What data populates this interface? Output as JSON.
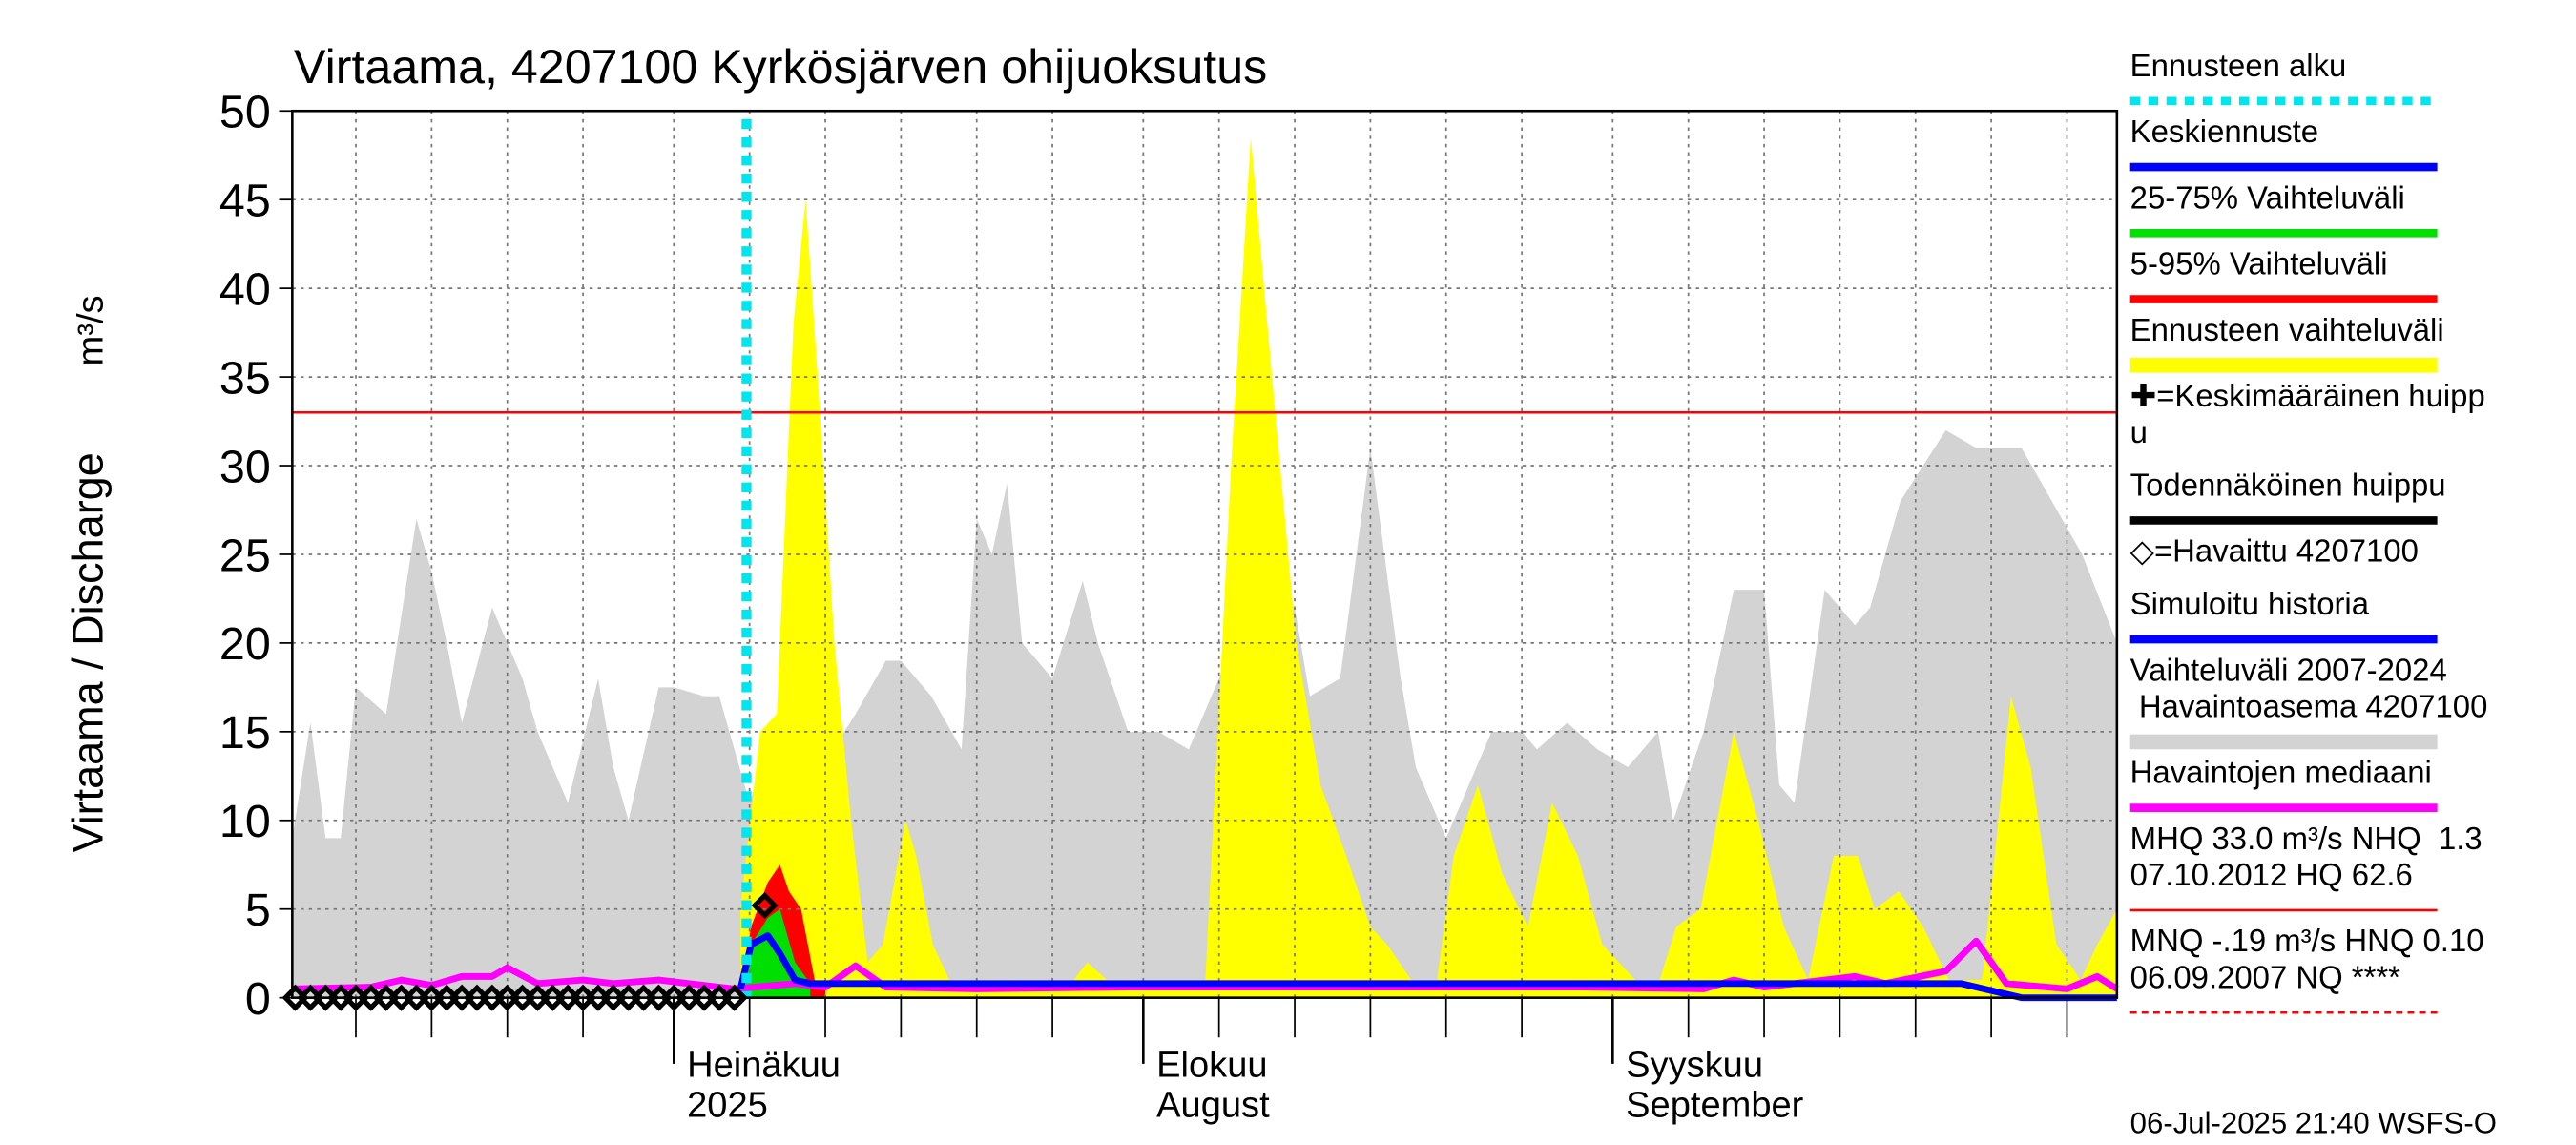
{
  "chart_data": {
    "type": "hydrograph",
    "title": "Virtaama, 4207100 Kyrkösjärven ohijuoksutus",
    "y_label": "Virtaama / Discharge",
    "y_unit": "m³/s",
    "footer": "06-Jul-2025 21:40 WSFS-O",
    "xlim": [
      -25.2,
      95.3
    ],
    "ylim": [
      0,
      50
    ],
    "yticks": [
      0,
      5,
      10,
      15,
      20,
      25,
      30,
      35,
      40,
      45,
      50
    ],
    "xticks": [
      {
        "value": 0,
        "label": "Heinäkuu",
        "label2": "2025"
      },
      {
        "value": 31,
        "label": "Elokuu",
        "label2": "August"
      },
      {
        "value": 62,
        "label": "Syyskuu",
        "label2": "September"
      }
    ],
    "xgrid": [
      -21,
      -16,
      -11,
      -6,
      0,
      5,
      10,
      15,
      20,
      25,
      31,
      36,
      41,
      46,
      51,
      56,
      62,
      67,
      72,
      77,
      82,
      87,
      92
    ],
    "grid": true,
    "forecast_start": 4.8,
    "mhq": 33,
    "areas": [
      {
        "name": "Vaihteluväli 2007-2024",
        "color": "#d3d3d3",
        "x": [
          -25.2,
          -24,
          -23,
          -22,
          -21,
          -19,
          -17,
          -16,
          -15,
          -14,
          -12,
          -11,
          -10,
          -9,
          -7,
          -5,
          -4,
          -3,
          -1,
          0,
          2,
          3,
          5,
          7,
          8,
          9,
          12,
          14,
          15,
          17,
          19,
          20,
          21,
          22,
          23,
          25,
          27,
          28,
          30,
          31,
          32,
          34,
          36,
          38,
          41,
          42,
          44,
          46,
          48,
          49,
          51,
          52,
          54,
          56,
          57,
          59,
          61,
          63,
          65,
          66,
          68,
          70,
          72,
          73,
          74,
          76,
          78,
          79,
          81,
          84,
          86,
          89,
          91,
          93,
          95.3
        ],
        "values": [
          9,
          15.5,
          9,
          9,
          17.5,
          16,
          27,
          24,
          20,
          15.5,
          22,
          20,
          18,
          15,
          11,
          18,
          13,
          10,
          17.5,
          17.5,
          17,
          17,
          11,
          16,
          12,
          12,
          16,
          19,
          19,
          17,
          14,
          27,
          25,
          29,
          20,
          18,
          23.5,
          20,
          15,
          15,
          15,
          14,
          18,
          23,
          22,
          17,
          18,
          31,
          18,
          13,
          9,
          11,
          15,
          15,
          14,
          15.5,
          14,
          13,
          15,
          10,
          15,
          23,
          23,
          12,
          11,
          23,
          21,
          22,
          28,
          32,
          31,
          31,
          28,
          25,
          20
        ]
      },
      {
        "name": "Ennusteen vaihteluväli",
        "color": "#ffff00",
        "x": [
          4.4,
          5.7,
          6.8,
          7.9,
          8.7,
          9.5,
          10.6,
          11.7,
          12.8,
          13.8,
          15.3,
          16.0,
          17.1,
          18.2,
          26.4,
          27.3,
          28.6,
          35.1,
          36.8,
          38.1,
          39.5,
          41.1,
          42.7,
          44.4,
          46.0,
          47.1,
          48.7,
          50.4,
          51.5,
          53.1,
          54.7,
          56.4,
          58.0,
          59.7,
          61.3,
          63.5,
          65.1,
          66.2,
          67.8,
          70.0,
          71.6,
          73.3,
          74.9,
          76.6,
          78.2,
          79.3,
          80.9,
          82.5,
          84.2,
          86.4,
          88.3,
          89.6,
          91.3,
          92.9,
          94.0,
          95.3
        ],
        "values": [
          5,
          15,
          16,
          38,
          45,
          35,
          20,
          10,
          2,
          3,
          10,
          8,
          3,
          1,
          1,
          2,
          1,
          1,
          30,
          48.5,
          35,
          20,
          12,
          8,
          4,
          3,
          1,
          1,
          8,
          12,
          7,
          4,
          11,
          8,
          3,
          1,
          1,
          4,
          5,
          15,
          10,
          4,
          1,
          8,
          8,
          5,
          6,
          4,
          1,
          1,
          17,
          13,
          3,
          1,
          3,
          5
        ]
      },
      {
        "name": "5-95% Vaihteluväli",
        "color": "#ff0000",
        "x": [
          4.4,
          5.1,
          6.2,
          7.0,
          7.6,
          8.4,
          9.3,
          10.0
        ],
        "values": [
          0.5,
          4,
          6.5,
          7.5,
          6,
          5,
          1,
          0.5
        ]
      },
      {
        "name": "25-75% Vaihteluväli",
        "color": "#00e000",
        "x": [
          4.4,
          5.1,
          6.2,
          7.0,
          8.0,
          9.0
        ],
        "values": [
          0.5,
          3,
          4.5,
          5,
          2,
          0.8
        ]
      }
    ],
    "lines": [
      {
        "name": "Havaintojen mediaani",
        "color": "#ff00ff",
        "x": [
          -25.2,
          -20,
          -18,
          -16,
          -14,
          -12,
          -11,
          -9,
          -6,
          -4,
          -1,
          1,
          4,
          8,
          10,
          12,
          14,
          20,
          30,
          40,
          50,
          60,
          68,
          70,
          72,
          78,
          80,
          84,
          86,
          88,
          92,
          94,
          95.3
        ],
        "values": [
          0.5,
          0.6,
          1,
          0.7,
          1.2,
          1.2,
          1.7,
          0.8,
          1,
          0.8,
          1,
          0.8,
          0.5,
          0.8,
          0.6,
          1.8,
          0.6,
          0.5,
          0.6,
          0.6,
          0.6,
          0.6,
          0.5,
          1,
          0.6,
          1.2,
          0.8,
          1.5,
          3.2,
          0.8,
          0.5,
          1.2,
          0.5
        ]
      },
      {
        "name": "Keskiennuste",
        "color": "#0000ff",
        "x": [
          4.4,
          5.1,
          6.2,
          7.0,
          8.0,
          9.0,
          20,
          40,
          60,
          85,
          89,
          95.3
        ],
        "values": [
          0.5,
          3,
          3.5,
          2.5,
          1,
          0.8,
          0.8,
          0.8,
          0.8,
          0.8,
          0,
          0
        ]
      }
    ],
    "observed": {
      "name": "=Havaittu 4207100",
      "x": [
        -25,
        -24,
        -23,
        -22,
        -21,
        -20,
        -19,
        -18,
        -17,
        -16,
        -15,
        -14,
        -13,
        -12,
        -11,
        -10,
        -9,
        -8,
        -7,
        -6,
        -5,
        -4,
        -3,
        -2,
        -1,
        0,
        1,
        2,
        3,
        4,
        6
      ],
      "values": [
        0,
        0,
        0,
        0,
        0,
        0,
        0,
        0,
        0,
        0,
        0,
        0,
        0,
        0,
        0,
        0,
        0,
        0,
        0,
        0,
        0,
        0,
        0,
        0,
        0,
        0,
        0,
        0,
        0,
        0,
        5.2
      ]
    },
    "legend": [
      {
        "lines": [
          "Ennusteen alku"
        ],
        "color": "#00e5ee",
        "style": "dotted"
      },
      {
        "lines": [
          "Keskiennuste"
        ],
        "color": "#0000ff",
        "style": "solid"
      },
      {
        "lines": [
          "25-75% Vaihteluväli"
        ],
        "color": "#00e000",
        "style": "solid"
      },
      {
        "lines": [
          "5-95% Vaihteluväli"
        ],
        "color": "#ff0000",
        "style": "solid"
      },
      {
        "lines": [
          "Ennusteen vaihteluväli"
        ],
        "color": "#ffff00",
        "style": "thick"
      },
      {
        "lines": [
          "✚=Keskimääräinen huipp",
          "u"
        ],
        "color": "#000000",
        "style": "none"
      },
      {
        "lines": [
          "Todennäköinen huippu"
        ],
        "color": "#000000",
        "style": "solid"
      },
      {
        "lines": [
          "◇=Havaittu 4207100"
        ],
        "color": "#000000",
        "style": "none"
      },
      {
        "lines": [
          "Simuloitu historia"
        ],
        "color": "#0000ff",
        "style": "solid"
      },
      {
        "lines": [
          "Vaihteluväli 2007-2024",
          " Havaintoasema 4207100"
        ],
        "color": "#d3d3d3",
        "style": "thick"
      },
      {
        "lines": [
          "Havaintojen mediaani"
        ],
        "color": "#ff00ff",
        "style": "solid"
      },
      {
        "lines": [
          "MHQ 33.0 m³/s NHQ  1.3",
          "07.10.2012 HQ 62.6"
        ],
        "color": "#ff0000",
        "style": "thin"
      },
      {
        "lines": [
          "MNQ -.19 m³/s HNQ 0.10",
          "06.09.2007 NQ ****"
        ],
        "color": "#ff0000",
        "style": "dashed"
      }
    ]
  }
}
